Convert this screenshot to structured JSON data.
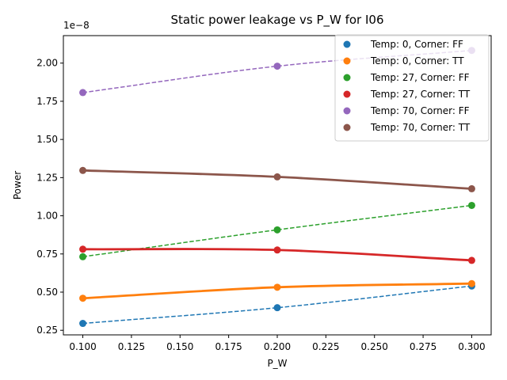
{
  "chart_data": {
    "type": "scatter",
    "title": "Static power leakage vs P_W for I06",
    "xlabel": "P_W",
    "ylabel": "Power",
    "y_offset_label": "1e−8",
    "x_ticks": [
      "0.100",
      "0.125",
      "0.150",
      "0.175",
      "0.200",
      "0.225",
      "0.250",
      "0.275",
      "0.300"
    ],
    "y_ticks": [
      "0.25",
      "0.50",
      "0.75",
      "1.00",
      "1.25",
      "1.50",
      "1.75",
      "2.00"
    ],
    "xlim": [
      0.09,
      0.31
    ],
    "ylim": [
      0.22,
      2.18
    ],
    "y_scale": 1e-08,
    "grid": false,
    "legend_position": "top-right",
    "x": [
      0.1,
      0.2,
      0.3
    ],
    "series": [
      {
        "name": "Temp: 0, Corner: FF",
        "color": "#1f77b4",
        "line": "dashed",
        "values": [
          0.295,
          0.398,
          0.54
        ]
      },
      {
        "name": "Temp: 0, Corner: TT",
        "color": "#ff7f0e",
        "line": "solid",
        "values": [
          0.46,
          0.532,
          0.556
        ]
      },
      {
        "name": "Temp: 27, Corner: FF",
        "color": "#2ca02c",
        "line": "dashed",
        "values": [
          0.732,
          0.908,
          1.068
        ]
      },
      {
        "name": "Temp: 27, Corner: TT",
        "color": "#d62728",
        "line": "solid",
        "values": [
          0.781,
          0.776,
          0.708
        ]
      },
      {
        "name": "Temp: 70, Corner: FF",
        "color": "#9467bd",
        "line": "dashed",
        "values": [
          1.807,
          1.98,
          2.083
        ]
      },
      {
        "name": "Temp: 70, Corner: TT",
        "color": "#8c564b",
        "line": "solid",
        "values": [
          1.297,
          1.255,
          1.177
        ]
      }
    ]
  }
}
